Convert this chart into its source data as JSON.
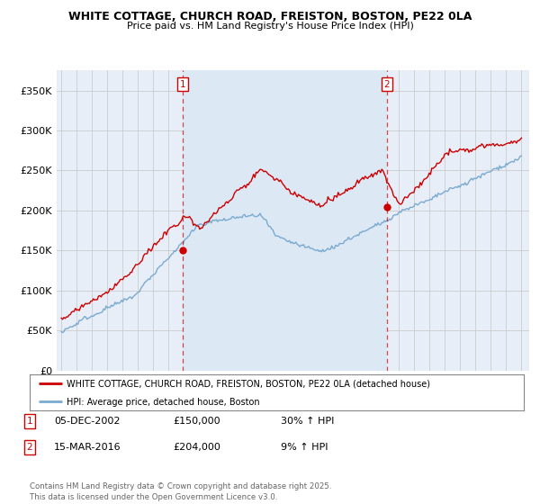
{
  "title": "WHITE COTTAGE, CHURCH ROAD, FREISTON, BOSTON, PE22 0LA",
  "subtitle": "Price paid vs. HM Land Registry's House Price Index (HPI)",
  "legend_label_red": "WHITE COTTAGE, CHURCH ROAD, FREISTON, BOSTON, PE22 0LA (detached house)",
  "legend_label_blue": "HPI: Average price, detached house, Boston",
  "annotation1_label": "1",
  "annotation1_date": "05-DEC-2002",
  "annotation1_price": "£150,000",
  "annotation1_hpi": "30% ↑ HPI",
  "annotation2_label": "2",
  "annotation2_date": "15-MAR-2016",
  "annotation2_price": "£204,000",
  "annotation2_hpi": "9% ↑ HPI",
  "footnote": "Contains HM Land Registry data © Crown copyright and database right 2025.\nThis data is licensed under the Open Government Licence v3.0.",
  "ylim": [
    0,
    375000
  ],
  "yticks": [
    0,
    50000,
    100000,
    150000,
    200000,
    250000,
    300000,
    350000
  ],
  "ytick_labels": [
    "£0",
    "£50K",
    "£100K",
    "£150K",
    "£200K",
    "£250K",
    "£300K",
    "£350K"
  ],
  "red_color": "#cc0000",
  "blue_color": "#7aaad0",
  "shade_color": "#dde8f5",
  "vline_color": "#cc0000",
  "grid_color": "#cccccc",
  "bg_color": "#e8eef8",
  "plot_bg": "#ffffff",
  "marker1_x": 2002.92,
  "marker1_y": 150000,
  "marker2_x": 2016.21,
  "marker2_y": 204000,
  "xlim_left": 1994.7,
  "xlim_right": 2025.5
}
